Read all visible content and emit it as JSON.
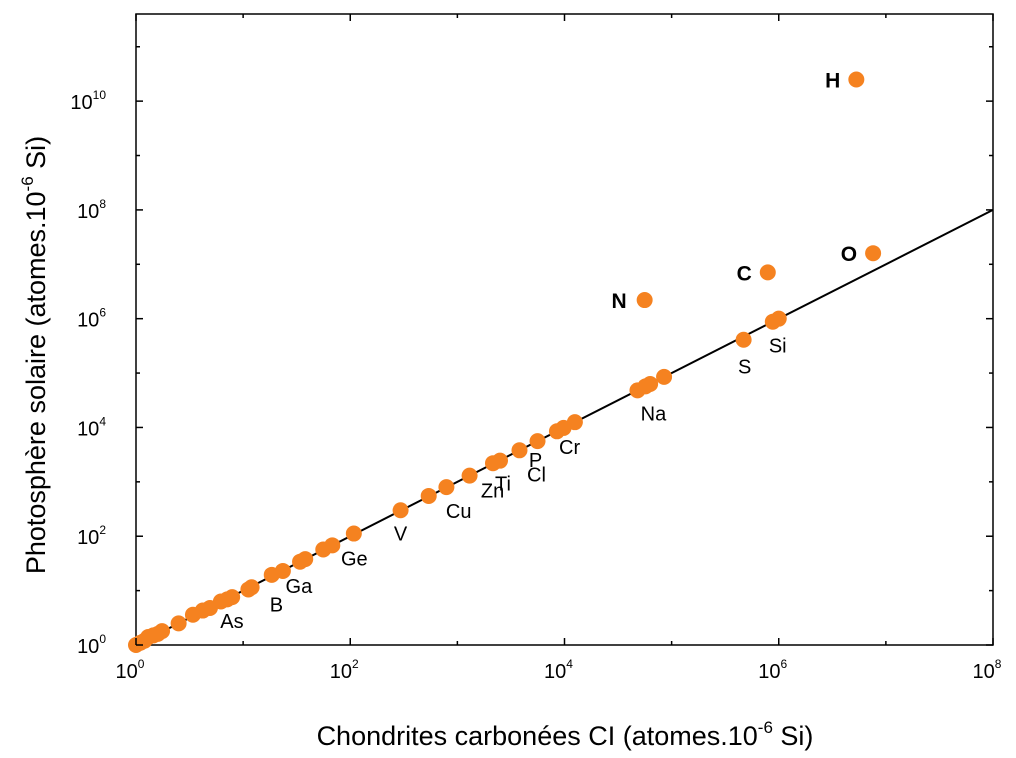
{
  "chart_data": {
    "type": "scatter",
    "xlabel": "Chondrites carbonées CI (atomes.10",
    "xlabel_exp": "-6",
    "xlabel_end": " Si)",
    "ylabel": "Photosphère solaire (atomes.10",
    "ylabel_exp": "-6",
    "ylabel_end": " Si)",
    "x_scale": "log",
    "y_scale": "log",
    "xlim": [
      1,
      100000000
    ],
    "ylim": [
      1,
      400000000000
    ],
    "x_ticks": [
      {
        "base": "10",
        "exp": "0",
        "value": 1
      },
      {
        "base": "10",
        "exp": "2",
        "value": 100
      },
      {
        "base": "10",
        "exp": "4",
        "value": 10000
      },
      {
        "base": "10",
        "exp": "6",
        "value": 1000000
      },
      {
        "base": "10",
        "exp": "8",
        "value": 100000000
      }
    ],
    "y_ticks": [
      {
        "base": "10",
        "exp": "0",
        "value": 1
      },
      {
        "base": "10",
        "exp": "2",
        "value": 100
      },
      {
        "base": "10",
        "exp": "4",
        "value": 10000
      },
      {
        "base": "10",
        "exp": "6",
        "value": 1000000
      },
      {
        "base": "10",
        "exp": "8",
        "value": 100000000
      },
      {
        "base": "10",
        "exp": "10",
        "value": 10000000000
      }
    ],
    "grid": false,
    "marker_color": "#F58220",
    "line_color": "#000000",
    "reference_line": {
      "x": [
        1,
        100000000
      ],
      "y": [
        1,
        100000000
      ]
    },
    "points": [
      {
        "x": 1.0,
        "y": 1.0
      },
      {
        "x": 1.1,
        "y": 1.1
      },
      {
        "x": 1.2,
        "y": 1.2
      },
      {
        "x": 1.3,
        "y": 1.4
      },
      {
        "x": 1.45,
        "y": 1.5
      },
      {
        "x": 1.6,
        "y": 1.6
      },
      {
        "x": 1.75,
        "y": 1.8
      },
      {
        "x": 2.5,
        "y": 2.5
      },
      {
        "x": 3.4,
        "y": 3.6
      },
      {
        "x": 4.2,
        "y": 4.3
      },
      {
        "x": 4.9,
        "y": 4.8
      },
      {
        "x": 6.2,
        "y": 6.3
      },
      {
        "x": 7.1,
        "y": 6.9
      },
      {
        "x": 7.9,
        "y": 7.6
      },
      {
        "x": 11.2,
        "y": 10.5
      },
      {
        "x": 12.0,
        "y": 11.5
      },
      {
        "x": 18.5,
        "y": 19.5
      },
      {
        "x": 23.5,
        "y": 23.0
      },
      {
        "x": 34.0,
        "y": 34.0
      },
      {
        "x": 38.0,
        "y": 38.0
      },
      {
        "x": 56.0,
        "y": 57.0
      },
      {
        "x": 68.0,
        "y": 68.0
      },
      {
        "x": 108.0,
        "y": 112.0
      },
      {
        "x": 295.0,
        "y": 300.0
      },
      {
        "x": 540.0,
        "y": 550.0
      },
      {
        "x": 790.0,
        "y": 800.0
      },
      {
        "x": 1300.0,
        "y": 1300.0
      },
      {
        "x": 2150.0,
        "y": 2200.0
      },
      {
        "x": 2500.0,
        "y": 2450.0
      },
      {
        "x": 3800.0,
        "y": 3800.0
      },
      {
        "x": 5600.0,
        "y": 5600.0
      },
      {
        "x": 8500.0,
        "y": 8500.0
      },
      {
        "x": 9800.0,
        "y": 9800.0
      },
      {
        "x": 12500.0,
        "y": 12500.0
      },
      {
        "x": 48000.0,
        "y": 48000.0
      },
      {
        "x": 57000.0,
        "y": 57000.0
      },
      {
        "x": 63000.0,
        "y": 63000.0
      },
      {
        "x": 85000.0,
        "y": 85000.0
      },
      {
        "x": 470000.0,
        "y": 410000.0
      },
      {
        "x": 880000.0,
        "y": 880000.0
      },
      {
        "x": 1000000.0,
        "y": 1000000.0
      },
      {
        "x": 56000.0,
        "y": 2200000.0
      },
      {
        "x": 790000.0,
        "y": 7100000.0
      },
      {
        "x": 7600000.0,
        "y": 16000000.0
      },
      {
        "x": 5300000.0,
        "y": 25000000000.0
      }
    ],
    "labels": [
      {
        "text": "As",
        "x": 4.9,
        "y": 4.8,
        "bold": false
      },
      {
        "text": "B",
        "x": 11.2,
        "y": 10.5,
        "bold": false
      },
      {
        "text": "Ga",
        "x": 23.5,
        "y": 23.0,
        "bold": false
      },
      {
        "text": "Ge",
        "x": 68.0,
        "y": 68.0,
        "bold": false
      },
      {
        "text": "V",
        "x": 295.0,
        "y": 300.0,
        "bold": false
      },
      {
        "text": "Cu",
        "x": 540.0,
        "y": 550.0,
        "bold": false
      },
      {
        "text": "Zn",
        "x": 1300.0,
        "y": 1300.0,
        "bold": false
      },
      {
        "text": "Ti",
        "x": 2500.0,
        "y": 2450.0,
        "bold": false
      },
      {
        "text": "Cl",
        "x": 3800.0,
        "y": 3800.0,
        "bold": false
      },
      {
        "text": "P",
        "x": 5600.0,
        "y": 5600.0,
        "bold": false
      },
      {
        "text": "Cr",
        "x": 9800.0,
        "y": 9800.0,
        "bold": false
      },
      {
        "text": "Na",
        "x": 57000.0,
        "y": 57000.0,
        "bold": false
      },
      {
        "text": "S",
        "x": 470000.0,
        "y": 410000.0,
        "bold": false
      },
      {
        "text": "Si",
        "x": 1000000.0,
        "y": 1000000.0,
        "bold": false
      },
      {
        "text": "N",
        "x": 56000.0,
        "y": 2200000.0,
        "bold": true
      },
      {
        "text": "C",
        "x": 790000.0,
        "y": 7100000.0,
        "bold": true
      },
      {
        "text": "O",
        "x": 7600000.0,
        "y": 16000000.0,
        "bold": true
      },
      {
        "text": "H",
        "x": 5300000.0,
        "y": 25000000000.0,
        "bold": true
      }
    ]
  }
}
